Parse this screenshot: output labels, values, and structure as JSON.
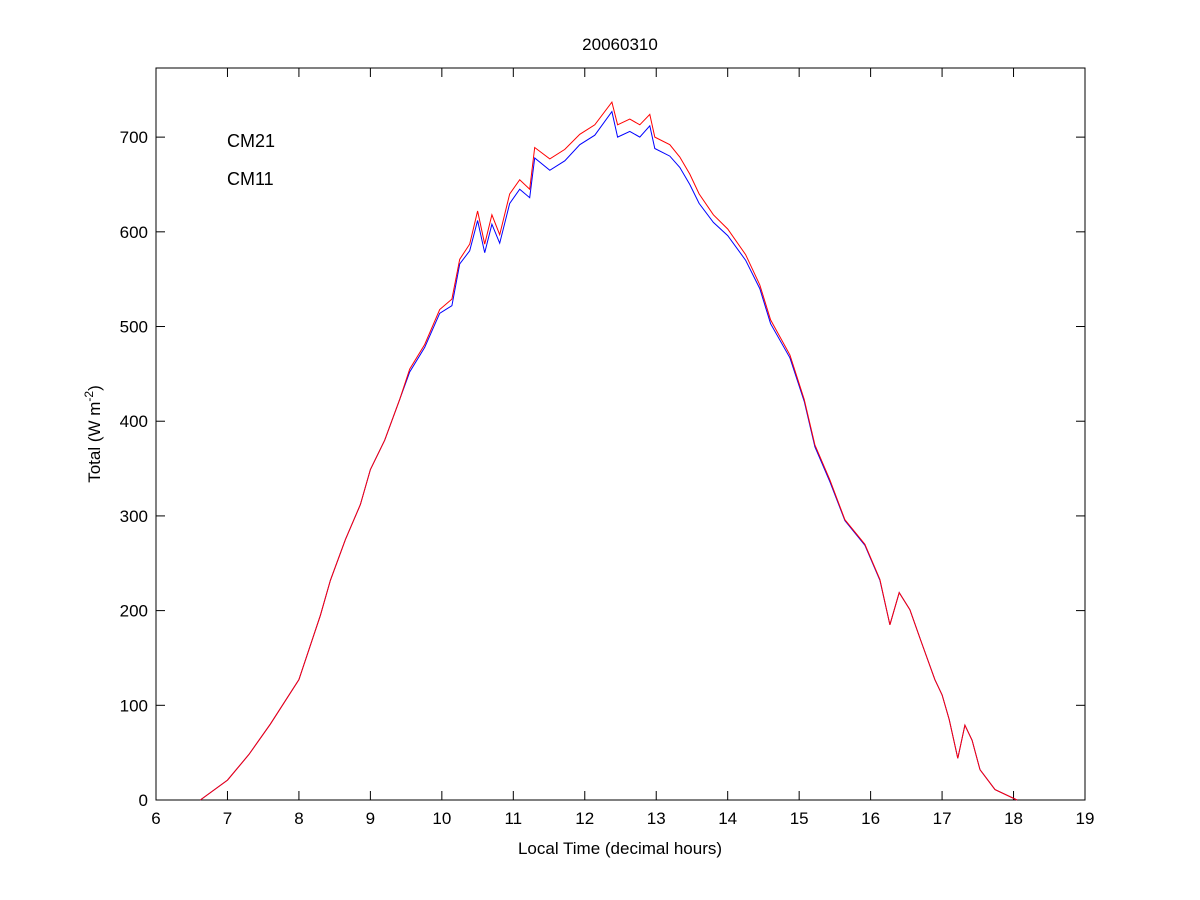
{
  "chart_data": {
    "type": "line",
    "title": "20060310",
    "xlabel": "Local Time (decimal hours)",
    "ylabel": {
      "main": "Total (W m",
      "sup": "-2",
      "end": ")"
    },
    "xlim": [
      6,
      19
    ],
    "ylim": [
      0,
      773
    ],
    "xticks": [
      6,
      7,
      8,
      9,
      10,
      11,
      12,
      13,
      14,
      15,
      16,
      17,
      18,
      19
    ],
    "yticks": [
      0,
      100,
      200,
      300,
      400,
      500,
      600,
      700
    ],
    "grid": false,
    "legend_placement": "top-left",
    "x": [
      6.62,
      7.0,
      7.3,
      7.6,
      8.0,
      8.3,
      8.44,
      8.65,
      8.86,
      9.0,
      9.2,
      9.41,
      9.55,
      9.76,
      9.97,
      10.14,
      10.25,
      10.39,
      10.5,
      10.6,
      10.7,
      10.81,
      10.95,
      11.09,
      11.23,
      11.3,
      11.51,
      11.72,
      11.93,
      12.14,
      12.38,
      12.46,
      12.63,
      12.77,
      12.91,
      12.98,
      13.19,
      13.33,
      13.47,
      13.6,
      13.8,
      14.0,
      14.25,
      14.45,
      14.6,
      14.87,
      15.07,
      15.22,
      15.43,
      15.64,
      15.92,
      16.13,
      16.27,
      16.4,
      16.55,
      16.7,
      16.9,
      17.0,
      17.1,
      17.22,
      17.32,
      17.42,
      17.53,
      17.74,
      18.05
    ],
    "series": [
      {
        "name": "CM21",
        "color": "#0000ff",
        "values": [
          0,
          21,
          48,
          80,
          127,
          195,
          232,
          275,
          312,
          349,
          380,
          423,
          452,
          478,
          514,
          522,
          566,
          580,
          612,
          578,
          608,
          588,
          630,
          645,
          636,
          678,
          665,
          675,
          692,
          702,
          727,
          700,
          706,
          700,
          712,
          688,
          680,
          668,
          650,
          630,
          610,
          596,
          570,
          540,
          503,
          467,
          421,
          373,
          336,
          295,
          269,
          232,
          185,
          219,
          201,
          169,
          127,
          111,
          85,
          44,
          79,
          63,
          32,
          11,
          0
        ]
      },
      {
        "name": "CM11",
        "color": "#ff0000",
        "values": [
          0,
          21,
          48,
          80,
          127,
          195,
          232,
          275,
          312,
          349,
          380,
          423,
          455,
          481,
          518,
          529,
          571,
          587,
          622,
          587,
          618,
          597,
          640,
          655,
          645,
          689,
          677,
          687,
          703,
          713,
          737,
          713,
          719,
          713,
          724,
          700,
          692,
          679,
          661,
          640,
          618,
          603,
          576,
          544,
          507,
          470,
          423,
          375,
          338,
          296,
          270,
          233,
          185,
          219,
          201,
          169,
          127,
          111,
          85,
          44,
          79,
          63,
          32,
          11,
          0
        ]
      }
    ]
  }
}
